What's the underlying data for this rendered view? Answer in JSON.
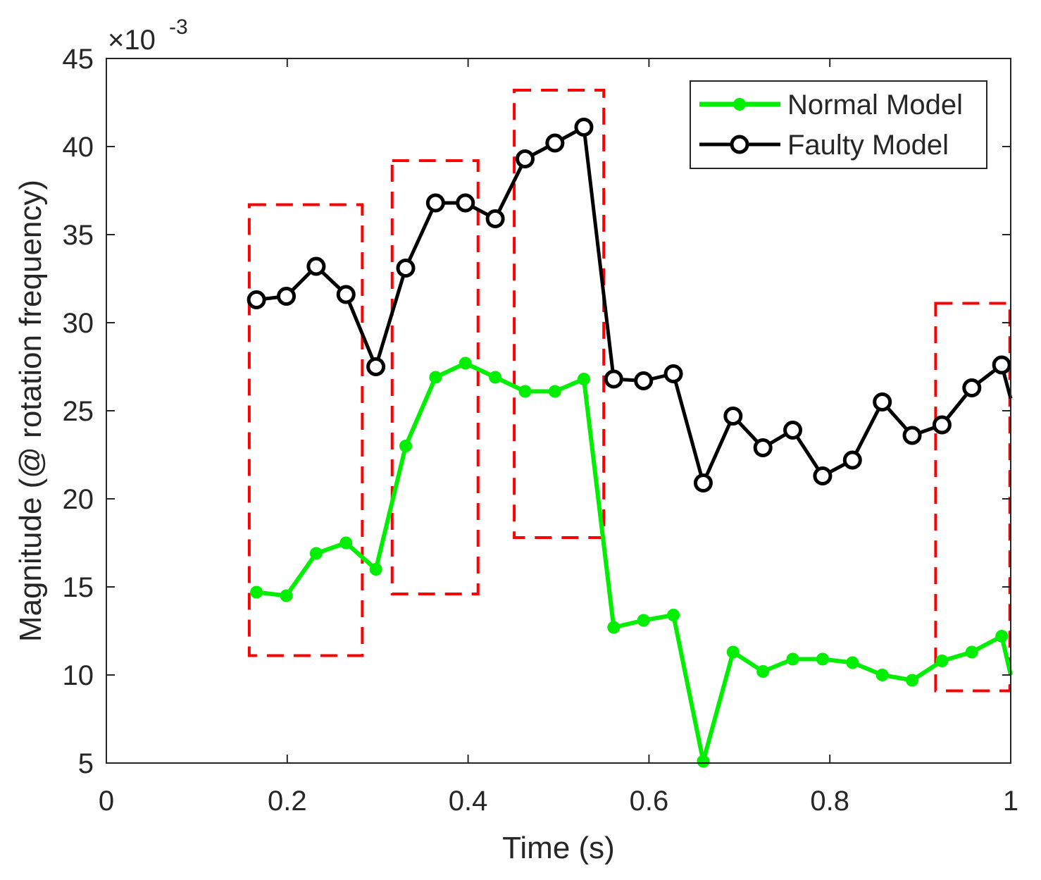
{
  "chart_data": {
    "type": "line",
    "xlabel": "Time (s)",
    "ylabel": "Magnitude (@ rotation frequency)",
    "y_multiplier": {
      "base": "×10",
      "exponent": "-3"
    },
    "xlim": [
      0,
      1
    ],
    "ylim": [
      5,
      45
    ],
    "x_ticks": [
      0,
      0.2,
      0.4,
      0.6,
      0.8,
      1
    ],
    "x_tick_labels": [
      "0",
      "0.2",
      "0.4",
      "0.6",
      "0.8",
      "1"
    ],
    "y_ticks": [
      5,
      10,
      15,
      20,
      25,
      30,
      35,
      40,
      45
    ],
    "y_tick_labels": [
      "5",
      "10",
      "15",
      "20",
      "25",
      "30",
      "35",
      "40",
      "45"
    ],
    "grid": false,
    "legend_position": "top-right",
    "series": [
      {
        "name": "Normal Model",
        "color": "#00ee00",
        "marker": "filled-circle",
        "x": [
          0.166,
          0.199,
          0.232,
          0.265,
          0.298,
          0.331,
          0.364,
          0.397,
          0.43,
          0.463,
          0.496,
          0.528,
          0.561,
          0.594,
          0.627,
          0.66,
          0.693,
          0.726,
          0.759,
          0.792,
          0.825,
          0.858,
          0.891,
          0.924,
          0.957,
          0.99,
          1.0
        ],
        "values": [
          14.7,
          14.5,
          16.9,
          17.5,
          16.0,
          23.0,
          26.9,
          27.7,
          26.9,
          26.1,
          26.1,
          26.8,
          12.7,
          13.1,
          13.4,
          5.1,
          11.3,
          10.2,
          10.9,
          10.9,
          10.7,
          10.0,
          9.7,
          10.8,
          11.3,
          12.2,
          10.0
        ]
      },
      {
        "name": "Faulty Model",
        "color": "#000000",
        "marker": "open-circle",
        "x": [
          0.166,
          0.199,
          0.232,
          0.265,
          0.298,
          0.331,
          0.364,
          0.397,
          0.43,
          0.463,
          0.496,
          0.528,
          0.561,
          0.594,
          0.627,
          0.66,
          0.693,
          0.726,
          0.759,
          0.792,
          0.825,
          0.858,
          0.891,
          0.924,
          0.957,
          0.99,
          1.0
        ],
        "values": [
          31.3,
          31.5,
          33.2,
          31.6,
          27.5,
          33.1,
          36.8,
          36.8,
          35.9,
          39.3,
          40.2,
          41.1,
          26.8,
          26.7,
          27.1,
          20.9,
          24.7,
          22.9,
          23.9,
          21.3,
          22.2,
          25.5,
          23.6,
          24.2,
          26.3,
          27.6,
          25.7
        ]
      }
    ],
    "annotations": [
      {
        "type": "dashed-rect",
        "color": "#ff0000",
        "x_range": [
          0.158,
          0.283
        ],
        "y_range": [
          11.1,
          36.7
        ]
      },
      {
        "type": "dashed-rect",
        "color": "#ff0000",
        "x_range": [
          0.316,
          0.411
        ],
        "y_range": [
          14.6,
          39.2
        ]
      },
      {
        "type": "dashed-rect",
        "color": "#ff0000",
        "x_range": [
          0.451,
          0.55
        ],
        "y_range": [
          17.8,
          43.2
        ]
      },
      {
        "type": "dashed-rect",
        "color": "#ff0000",
        "x_range": [
          0.917,
          0.999
        ],
        "y_range": [
          9.1,
          31.1
        ]
      }
    ]
  }
}
